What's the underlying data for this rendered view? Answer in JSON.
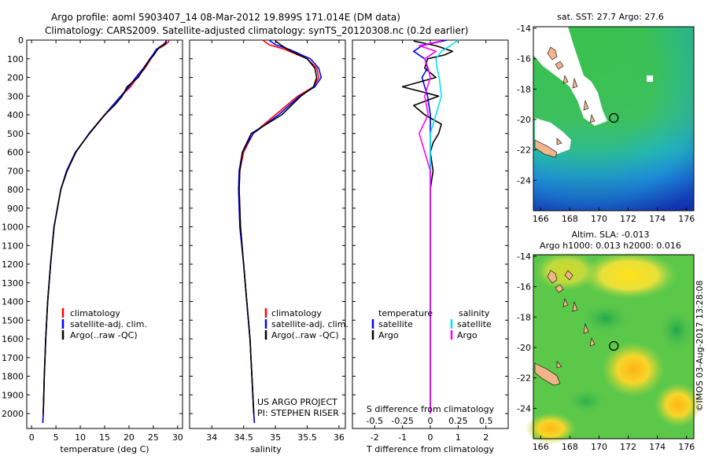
{
  "header": {
    "line1": "Argo profile: aoml 5903407_14 08-Mar-2012 19.899S 171.014E (DM data)",
    "line2": "Climatology: CARS2009. Satellite-adjusted climatology: synTS_20120308.nc (0.2d earlier)"
  },
  "colors": {
    "climatology": "#ff0000",
    "satellite": "#0000ff",
    "argo": "#000000",
    "sat_salinity": "#00e5ee",
    "argo_salinity": "#ff00ff"
  },
  "chart_data": [
    {
      "id": "temperature",
      "type": "line",
      "xlabel": "temperature (deg C)",
      "ylabel": "",
      "xlim": [
        -1,
        31
      ],
      "ylim": [
        2080,
        0
      ],
      "xticks": [
        0,
        5,
        10,
        15,
        20,
        25,
        30
      ],
      "yticks": [
        0,
        100,
        200,
        300,
        400,
        500,
        600,
        700,
        800,
        900,
        1000,
        1100,
        1200,
        1300,
        1400,
        1500,
        1600,
        1700,
        1800,
        1900,
        2000
      ],
      "legend": [
        "climatology",
        "satellite-adj. clim.",
        "Argo(..raw -QC)"
      ],
      "series": [
        {
          "name": "climatology",
          "depth": [
            0,
            10,
            25,
            50,
            75,
            100,
            150,
            200,
            250,
            300,
            400,
            500,
            600,
            700,
            800,
            1000,
            1200,
            1400,
            1600,
            1800,
            2000,
            2050
          ],
          "values": [
            28.2,
            28.1,
            27.4,
            25.8,
            25.2,
            24.5,
            23.3,
            21.7,
            20.3,
            18.4,
            15.1,
            11.9,
            9.0,
            7.2,
            6.0,
            4.6,
            3.9,
            3.3,
            2.9,
            2.6,
            2.4,
            2.3
          ]
        },
        {
          "name": "satellite",
          "depth": [
            0,
            10,
            25,
            50,
            75,
            100,
            150,
            200,
            250,
            300,
            400,
            500,
            600,
            700,
            800,
            1000,
            1200,
            1400,
            1600,
            1800,
            2000,
            2050
          ],
          "values": [
            27.7,
            27.6,
            27.0,
            25.6,
            25.0,
            24.3,
            23.0,
            21.4,
            20.0,
            18.3,
            15.0,
            11.9,
            9.0,
            7.2,
            6.0,
            4.6,
            3.9,
            3.3,
            2.9,
            2.6,
            2.4,
            2.3
          ]
        },
        {
          "name": "argo",
          "depth": [
            5,
            20,
            40,
            60,
            80,
            100,
            150,
            200,
            250,
            300,
            350,
            400,
            500,
            600,
            700,
            800,
            1000,
            1200,
            1400,
            1600,
            1800,
            2000
          ],
          "values": [
            27.6,
            27.5,
            26.2,
            25.6,
            25.1,
            24.4,
            23.1,
            21.9,
            19.6,
            18.6,
            17.0,
            15.0,
            11.8,
            9.1,
            7.3,
            6.0,
            4.6,
            3.9,
            3.3,
            2.9,
            2.6,
            2.4
          ]
        }
      ]
    },
    {
      "id": "salinity",
      "type": "line",
      "xlabel": "salinity",
      "ylabel": "",
      "xlim": [
        33.65,
        36.1
      ],
      "ylim": [
        2080,
        0
      ],
      "xticks": [
        34,
        34.5,
        35,
        35.5,
        36
      ],
      "legend": [
        "climatology",
        "satellite-adj. clim.",
        "Argo(..raw -QC)"
      ],
      "annotations": [
        "US ARGO PROJECT",
        "PI: STEPHEN RISER"
      ],
      "series": [
        {
          "name": "climatology",
          "depth": [
            0,
            25,
            50,
            100,
            150,
            200,
            250,
            300,
            400,
            500,
            600,
            700,
            800,
            1000,
            1200,
            1400,
            1600,
            1800,
            2000,
            2050
          ],
          "values": [
            34.8,
            34.9,
            35.15,
            35.5,
            35.65,
            35.68,
            35.6,
            35.35,
            35.0,
            34.65,
            34.5,
            34.44,
            34.43,
            34.45,
            34.5,
            34.55,
            34.6,
            34.63,
            34.66,
            34.67
          ]
        },
        {
          "name": "satellite",
          "depth": [
            0,
            25,
            50,
            100,
            150,
            200,
            250,
            300,
            400,
            500,
            600,
            700,
            800,
            1000,
            1200,
            1400,
            1600,
            1800,
            2000,
            2050
          ],
          "values": [
            34.9,
            35.0,
            35.22,
            35.55,
            35.68,
            35.72,
            35.62,
            35.38,
            35.05,
            34.65,
            34.48,
            34.43,
            34.42,
            34.44,
            34.5,
            34.55,
            34.6,
            34.63,
            34.66,
            34.67
          ]
        },
        {
          "name": "argo",
          "depth": [
            5,
            30,
            60,
            100,
            150,
            200,
            250,
            300,
            400,
            500,
            600,
            700,
            800,
            1000,
            1200,
            1400,
            1600,
            1800,
            2000
          ],
          "values": [
            35.0,
            35.1,
            35.25,
            35.5,
            35.62,
            35.65,
            35.6,
            35.4,
            35.1,
            34.62,
            34.48,
            34.44,
            34.43,
            34.45,
            34.5,
            34.55,
            34.6,
            34.63,
            34.66
          ]
        }
      ]
    },
    {
      "id": "difference",
      "type": "line",
      "xlabel": "T difference from climatology",
      "xlabel_top": "S difference from climatology",
      "xlim": [
        -2.8,
        2.8
      ],
      "ylim": [
        2080,
        0
      ],
      "xticks": [
        -2,
        -1,
        0,
        1,
        2
      ],
      "sticks_values": [
        -0.5,
        -0.25,
        0,
        0.25,
        0.5
      ],
      "sticks_labels": [
        "-0.5",
        "-0.25",
        "0",
        "0.25",
        "0.5"
      ],
      "legend_headers": [
        "temperature",
        "salinity"
      ],
      "legend": [
        "satellite",
        "Argo",
        "satellite",
        "Argo"
      ],
      "series": [
        {
          "name": "T satellite",
          "depth": [
            0,
            30,
            60,
            100,
            150,
            200,
            300,
            400,
            500,
            600,
            800,
            1000,
            1500,
            2000
          ],
          "values": [
            0.6,
            -0.3,
            -0.6,
            -0.2,
            -0.1,
            -0.3,
            -0.1,
            0.0,
            0.0,
            0.0,
            0.0,
            0.0,
            0.0,
            0.0
          ]
        },
        {
          "name": "T argo",
          "depth": [
            5,
            30,
            60,
            80,
            100,
            150,
            200,
            250,
            300,
            350,
            400,
            450,
            500,
            550,
            600,
            700,
            800,
            1000,
            1200,
            1500,
            2000
          ],
          "values": [
            -0.6,
            0.2,
            0.8,
            0.5,
            -0.1,
            -0.2,
            0.2,
            -1.0,
            0.3,
            -0.6,
            -0.2,
            0.4,
            0.3,
            0.1,
            0.0,
            0.1,
            0.0,
            0.0,
            0.0,
            0.0,
            0.0
          ]
        },
        {
          "name": "S satellite",
          "depth": [
            0,
            30,
            60,
            100,
            150,
            200,
            300,
            400,
            500,
            600,
            700,
            800,
            1000,
            1500,
            2000
          ],
          "values": [
            0.25,
            0.18,
            0.1,
            0.05,
            0.06,
            0.08,
            0.1,
            0.05,
            0.0,
            0.0,
            0.0,
            0.0,
            0.0,
            0.0,
            0.0
          ]
        },
        {
          "name": "S argo",
          "depth": [
            5,
            30,
            60,
            100,
            150,
            200,
            300,
            400,
            500,
            600,
            700,
            800,
            1000,
            1500,
            2000
          ],
          "values": [
            0.1,
            -0.1,
            0.05,
            -0.05,
            -0.02,
            0.0,
            -0.05,
            -0.02,
            -0.1,
            -0.05,
            0.0,
            0.0,
            0.0,
            0.0,
            0.0
          ]
        }
      ]
    },
    {
      "id": "sst_map",
      "type": "heatmap",
      "title": "sat. SST: 27.7 Argo: 27.6",
      "xlim": [
        165.5,
        176.5
      ],
      "ylim": [
        -26,
        -13.9
      ],
      "xticks": [
        166,
        168,
        170,
        172,
        174,
        176
      ],
      "yticks": [
        -14,
        -16,
        -18,
        -20,
        -22,
        -24
      ],
      "profile_location": [
        171.014,
        -19.899
      ]
    },
    {
      "id": "sla_map",
      "type": "heatmap",
      "title": "Altim. SLA: -0.013",
      "subtitle": "Argo h1000: 0.013 h2000: 0.016",
      "xlim": [
        165.5,
        176.5
      ],
      "ylim": [
        -26,
        -13.9
      ],
      "xticks": [
        166,
        168,
        170,
        172,
        174,
        176
      ],
      "yticks": [
        -14,
        -16,
        -18,
        -20,
        -22,
        -24
      ],
      "profile_location": [
        171.014,
        -19.899
      ]
    }
  ],
  "footer": {
    "stamp": "©IMOS 03-Aug-2017 13:28:08"
  }
}
